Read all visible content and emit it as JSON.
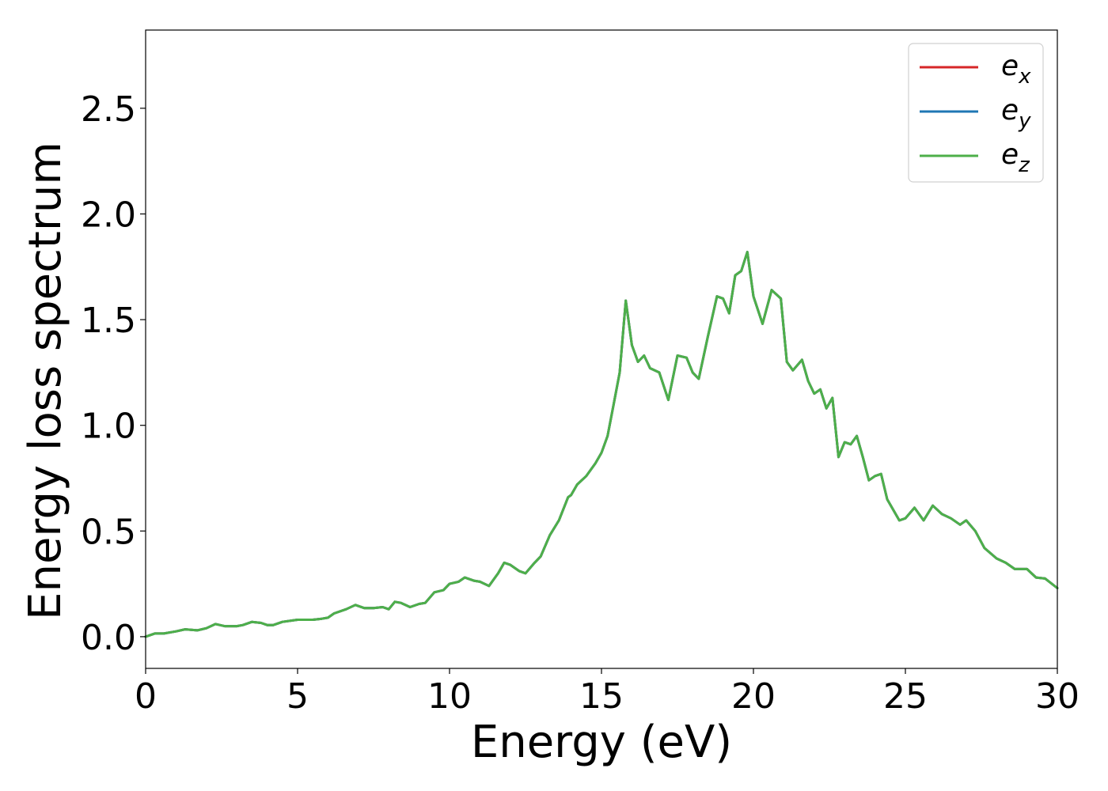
{
  "chart_data": {
    "type": "line",
    "title": "",
    "xlabel": "Energy (eV)",
    "ylabel": "Energy loss spectrum",
    "xlim": [
      0,
      30
    ],
    "ylim": [
      -0.15,
      2.87
    ],
    "xticks": [
      0,
      5,
      10,
      15,
      20,
      25,
      30
    ],
    "xtick_labels": [
      "0",
      "5",
      "10",
      "15",
      "20",
      "25",
      "30"
    ],
    "yticks": [
      0.0,
      0.5,
      1.0,
      1.5,
      2.0,
      2.5
    ],
    "ytick_labels": [
      "0.0",
      "0.5",
      "1.0",
      "1.5",
      "2.0",
      "2.5"
    ],
    "grid": false,
    "legend_position": "top-right",
    "series": [
      {
        "name": "e_x",
        "label_base": "e",
        "label_sub": "x",
        "color": "#d62728",
        "x": [
          0,
          0.3,
          0.6,
          1.0,
          1.3,
          1.7,
          2.0,
          2.3,
          2.6,
          3.0,
          3.2,
          3.5,
          3.8,
          4.0,
          4.2,
          4.5,
          5.0,
          5.5,
          5.8,
          6.0,
          6.2,
          6.6,
          6.9,
          7.2,
          7.5,
          7.8,
          8.0,
          8.2,
          8.4,
          8.7,
          9.0,
          9.2,
          9.5,
          9.8,
          10.0,
          10.3,
          10.5,
          10.8,
          11.0,
          11.3,
          11.6,
          11.8,
          12.0,
          12.3,
          12.5,
          12.8,
          13.0,
          13.3,
          13.6,
          13.9,
          14.0,
          14.2,
          14.5,
          14.8,
          15.0,
          15.2,
          15.4,
          15.6,
          15.8,
          16.0,
          16.2,
          16.4,
          16.6,
          16.9,
          17.2,
          17.5,
          17.8,
          18.0,
          18.2,
          18.5,
          18.8,
          19.0,
          19.2,
          19.4,
          19.6,
          19.8,
          20.0,
          20.3,
          20.6,
          20.9,
          21.1,
          21.3,
          21.6,
          21.8,
          22.0,
          22.2,
          22.4,
          22.6,
          22.8,
          23.0,
          23.2,
          23.4,
          23.6,
          23.8,
          24.0,
          24.2,
          24.4,
          24.8,
          25.0,
          25.3,
          25.6,
          25.9,
          26.2,
          26.5,
          26.8,
          27.0,
          27.3,
          27.6,
          28.0,
          28.3,
          28.6,
          29.0,
          29.3,
          29.6,
          30.0
        ],
        "y": [
          0.0,
          0.015,
          0.015,
          0.025,
          0.035,
          0.03,
          0.04,
          0.06,
          0.05,
          0.05,
          0.055,
          0.07,
          0.065,
          0.055,
          0.055,
          0.07,
          0.08,
          0.08,
          0.085,
          0.09,
          0.11,
          0.13,
          0.15,
          0.135,
          0.135,
          0.14,
          0.13,
          0.165,
          0.16,
          0.14,
          0.155,
          0.16,
          0.21,
          0.22,
          0.25,
          0.26,
          0.28,
          0.265,
          0.26,
          0.24,
          0.3,
          0.35,
          0.34,
          0.31,
          0.3,
          0.35,
          0.38,
          0.48,
          0.55,
          0.66,
          0.67,
          0.72,
          0.76,
          0.82,
          0.87,
          0.95,
          1.1,
          1.25,
          1.59,
          1.38,
          1.3,
          1.33,
          1.27,
          1.25,
          1.12,
          1.33,
          1.32,
          1.25,
          1.22,
          1.42,
          1.61,
          1.6,
          1.53,
          1.71,
          1.73,
          1.82,
          1.61,
          1.48,
          1.64,
          1.6,
          1.3,
          1.26,
          1.31,
          1.21,
          1.15,
          1.17,
          1.08,
          1.13,
          0.85,
          0.92,
          0.91,
          0.95,
          0.85,
          0.74,
          0.76,
          0.77,
          0.65,
          0.55,
          0.56,
          0.61,
          0.55,
          0.62,
          0.58,
          0.56,
          0.53,
          0.55,
          0.5,
          0.42,
          0.37,
          0.35,
          0.32,
          0.32,
          0.28,
          0.275,
          0.23
        ]
      },
      {
        "name": "e_y",
        "label_base": "e",
        "label_sub": "y",
        "color": "#1f77b4",
        "x": [
          0,
          0.3,
          0.6,
          1.0,
          1.3,
          1.7,
          2.0,
          2.3,
          2.6,
          3.0,
          3.2,
          3.5,
          3.8,
          4.0,
          4.2,
          4.5,
          5.0,
          5.5,
          5.8,
          6.0,
          6.2,
          6.6,
          6.9,
          7.2,
          7.5,
          7.8,
          8.0,
          8.2,
          8.4,
          8.7,
          9.0,
          9.2,
          9.5,
          9.8,
          10.0,
          10.3,
          10.5,
          10.8,
          11.0,
          11.3,
          11.6,
          11.8,
          12.0,
          12.3,
          12.5,
          12.8,
          13.0,
          13.3,
          13.6,
          13.9,
          14.0,
          14.2,
          14.5,
          14.8,
          15.0,
          15.2,
          15.4,
          15.6,
          15.8,
          16.0,
          16.2,
          16.4,
          16.6,
          16.9,
          17.2,
          17.5,
          17.8,
          18.0,
          18.2,
          18.5,
          18.8,
          19.0,
          19.2,
          19.4,
          19.6,
          19.8,
          20.0,
          20.3,
          20.6,
          20.9,
          21.1,
          21.3,
          21.6,
          21.8,
          22.0,
          22.2,
          22.4,
          22.6,
          22.8,
          23.0,
          23.2,
          23.4,
          23.6,
          23.8,
          24.0,
          24.2,
          24.4,
          24.8,
          25.0,
          25.3,
          25.6,
          25.9,
          26.2,
          26.5,
          26.8,
          27.0,
          27.3,
          27.6,
          28.0,
          28.3,
          28.6,
          29.0,
          29.3,
          29.6,
          30.0
        ],
        "y": [
          0.0,
          0.015,
          0.015,
          0.025,
          0.035,
          0.03,
          0.04,
          0.06,
          0.05,
          0.05,
          0.055,
          0.07,
          0.065,
          0.055,
          0.055,
          0.07,
          0.08,
          0.08,
          0.085,
          0.09,
          0.11,
          0.13,
          0.15,
          0.135,
          0.135,
          0.14,
          0.13,
          0.165,
          0.16,
          0.14,
          0.155,
          0.16,
          0.21,
          0.22,
          0.25,
          0.26,
          0.28,
          0.265,
          0.26,
          0.24,
          0.3,
          0.35,
          0.34,
          0.31,
          0.3,
          0.35,
          0.38,
          0.48,
          0.55,
          0.66,
          0.67,
          0.72,
          0.76,
          0.82,
          0.87,
          0.95,
          1.1,
          1.25,
          1.59,
          1.38,
          1.3,
          1.33,
          1.27,
          1.25,
          1.12,
          1.33,
          1.32,
          1.25,
          1.22,
          1.42,
          1.61,
          1.6,
          1.53,
          1.71,
          1.73,
          1.82,
          1.61,
          1.48,
          1.64,
          1.6,
          1.3,
          1.26,
          1.31,
          1.21,
          1.15,
          1.17,
          1.08,
          1.13,
          0.85,
          0.92,
          0.91,
          0.95,
          0.85,
          0.74,
          0.76,
          0.77,
          0.65,
          0.55,
          0.56,
          0.61,
          0.55,
          0.62,
          0.58,
          0.56,
          0.53,
          0.55,
          0.5,
          0.42,
          0.37,
          0.35,
          0.32,
          0.32,
          0.28,
          0.275,
          0.23
        ]
      },
      {
        "name": "e_z",
        "label_base": "e",
        "label_sub": "z",
        "color": "#4daf4a",
        "x": [
          0,
          0.3,
          0.6,
          1.0,
          1.3,
          1.7,
          2.0,
          2.3,
          2.6,
          3.0,
          3.2,
          3.5,
          3.8,
          4.0,
          4.2,
          4.5,
          5.0,
          5.5,
          5.8,
          6.0,
          6.2,
          6.6,
          6.9,
          7.2,
          7.5,
          7.8,
          8.0,
          8.2,
          8.4,
          8.7,
          9.0,
          9.2,
          9.5,
          9.8,
          10.0,
          10.3,
          10.5,
          10.8,
          11.0,
          11.3,
          11.6,
          11.8,
          12.0,
          12.3,
          12.5,
          12.8,
          13.0,
          13.3,
          13.6,
          13.9,
          14.0,
          14.2,
          14.5,
          14.8,
          15.0,
          15.2,
          15.4,
          15.6,
          15.8,
          16.0,
          16.2,
          16.4,
          16.6,
          16.9,
          17.2,
          17.5,
          17.8,
          18.0,
          18.2,
          18.5,
          18.8,
          19.0,
          19.2,
          19.4,
          19.6,
          19.8,
          20.0,
          20.3,
          20.6,
          20.9,
          21.1,
          21.3,
          21.6,
          21.8,
          22.0,
          22.2,
          22.4,
          22.6,
          22.8,
          23.0,
          23.2,
          23.4,
          23.6,
          23.8,
          24.0,
          24.2,
          24.4,
          24.8,
          25.0,
          25.3,
          25.6,
          25.9,
          26.2,
          26.5,
          26.8,
          27.0,
          27.3,
          27.6,
          28.0,
          28.3,
          28.6,
          29.0,
          29.3,
          29.6,
          30.0
        ],
        "y": [
          0.0,
          0.015,
          0.015,
          0.025,
          0.035,
          0.03,
          0.04,
          0.06,
          0.05,
          0.05,
          0.055,
          0.07,
          0.065,
          0.055,
          0.055,
          0.07,
          0.08,
          0.08,
          0.085,
          0.09,
          0.11,
          0.13,
          0.15,
          0.135,
          0.135,
          0.14,
          0.13,
          0.165,
          0.16,
          0.14,
          0.155,
          0.16,
          0.21,
          0.22,
          0.25,
          0.26,
          0.28,
          0.265,
          0.26,
          0.24,
          0.3,
          0.35,
          0.34,
          0.31,
          0.3,
          0.35,
          0.38,
          0.48,
          0.55,
          0.66,
          0.67,
          0.72,
          0.76,
          0.82,
          0.87,
          0.95,
          1.1,
          1.25,
          1.59,
          1.38,
          1.3,
          1.33,
          1.27,
          1.25,
          1.12,
          1.33,
          1.32,
          1.25,
          1.22,
          1.42,
          1.61,
          1.6,
          1.53,
          1.71,
          1.73,
          1.82,
          1.61,
          1.48,
          1.64,
          1.6,
          1.3,
          1.26,
          1.31,
          1.21,
          1.15,
          1.17,
          1.08,
          1.13,
          0.85,
          0.92,
          0.91,
          0.95,
          0.85,
          0.74,
          0.76,
          0.77,
          0.65,
          0.55,
          0.56,
          0.61,
          0.55,
          0.62,
          0.58,
          0.56,
          0.53,
          0.55,
          0.5,
          0.42,
          0.37,
          0.35,
          0.32,
          0.32,
          0.28,
          0.275,
          0.23
        ]
      }
    ]
  }
}
